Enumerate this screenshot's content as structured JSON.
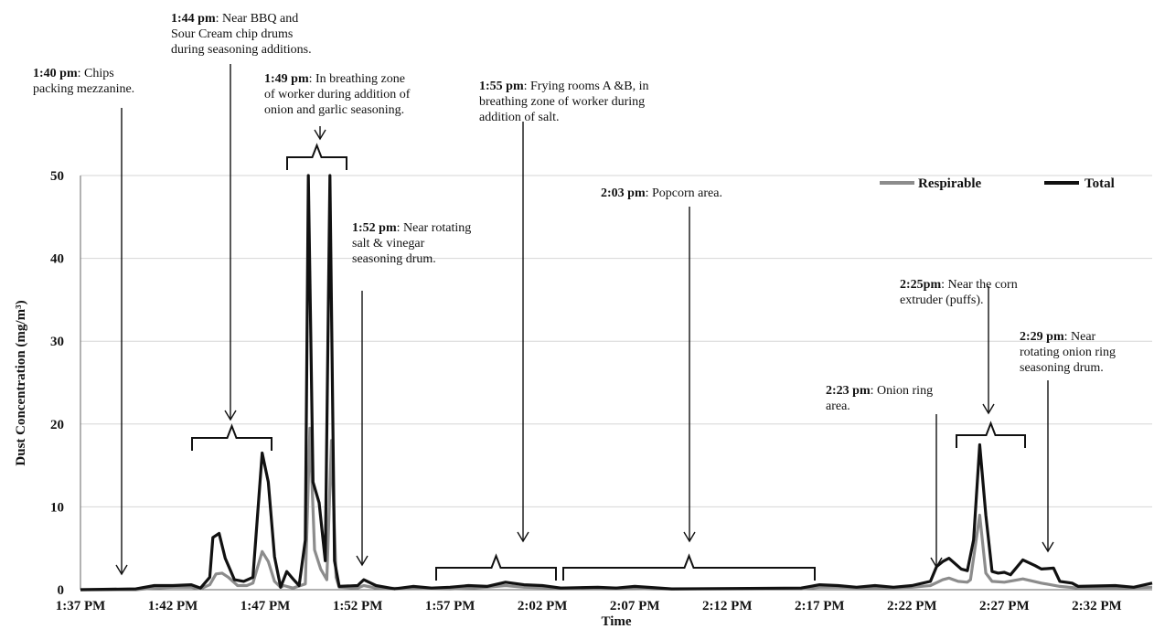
{
  "chart_data": {
    "type": "line",
    "xlabel": "Time",
    "ylabel": "Dust Concentration (mg/m³)",
    "ylim": [
      0,
      50
    ],
    "y_ticks": [
      0,
      10,
      20,
      30,
      40,
      50
    ],
    "xlim": [
      "13:37",
      "14:35"
    ],
    "x_ticks": [
      {
        "t": "13:37",
        "label": "1:37 PM"
      },
      {
        "t": "13:42",
        "label": "1:42 PM"
      },
      {
        "t": "13:47",
        "label": "1:47 PM"
      },
      {
        "t": "13:52",
        "label": "1:52 PM"
      },
      {
        "t": "13:57",
        "label": "1:57 PM"
      },
      {
        "t": "14:02",
        "label": "2:02 PM"
      },
      {
        "t": "14:07",
        "label": "2:07 PM"
      },
      {
        "t": "14:12",
        "label": "2:12 PM"
      },
      {
        "t": "14:17",
        "label": "2:17 PM"
      },
      {
        "t": "14:22",
        "label": "2:22 PM"
      },
      {
        "t": "14:27",
        "label": "2:27 PM"
      },
      {
        "t": "14:32",
        "label": "2:32 PM"
      }
    ],
    "grid": "horizontal",
    "legend_position": "top-right",
    "series": [
      {
        "name": "Respirable",
        "color": "#8c8c8c",
        "points": [
          [
            "13:37",
            0
          ],
          [
            "13:40",
            0
          ],
          [
            "13:41",
            0.2
          ],
          [
            "13:42",
            0.3
          ],
          [
            "13:43",
            0.3
          ],
          [
            "13:43:30",
            0.1
          ],
          [
            "13:44",
            0.6
          ],
          [
            "13:44:20",
            1.9
          ],
          [
            "13:44:40",
            2.0
          ],
          [
            "13:45",
            1.5
          ],
          [
            "13:45:30",
            0.5
          ],
          [
            "13:46",
            0.5
          ],
          [
            "13:46:20",
            0.8
          ],
          [
            "13:46:50",
            4.6
          ],
          [
            "13:47:10",
            3.4
          ],
          [
            "13:47:30",
            1.0
          ],
          [
            "13:47:50",
            0.3
          ],
          [
            "13:48",
            0.5
          ],
          [
            "13:48:30",
            0.2
          ],
          [
            "13:49:10",
            0.7
          ],
          [
            "13:49:25",
            19.5
          ],
          [
            "13:49:40",
            4.8
          ],
          [
            "13:50",
            2.5
          ],
          [
            "13:50:20",
            1.2
          ],
          [
            "13:50:35",
            18.0
          ],
          [
            "13:50:50",
            1.5
          ],
          [
            "13:51",
            0.3
          ],
          [
            "13:52",
            0.2
          ],
          [
            "13:52:20",
            0.5
          ],
          [
            "13:53",
            0.2
          ],
          [
            "13:57",
            0.1
          ],
          [
            "13:59",
            0.3
          ],
          [
            "14:00",
            0.5
          ],
          [
            "14:01",
            0.3
          ],
          [
            "14:03",
            0.2
          ],
          [
            "14:06",
            0.2
          ],
          [
            "14:08",
            0.1
          ],
          [
            "14:16",
            0.1
          ],
          [
            "14:17",
            0.3
          ],
          [
            "14:18",
            0.3
          ],
          [
            "14:20",
            0.2
          ],
          [
            "14:22",
            0.3
          ],
          [
            "14:23",
            0.5
          ],
          [
            "14:23:40",
            1.2
          ],
          [
            "14:24",
            1.4
          ],
          [
            "14:24:30",
            1.0
          ],
          [
            "14:25",
            0.9
          ],
          [
            "14:25:10",
            1.2
          ],
          [
            "14:25:40",
            9.0
          ],
          [
            "14:26",
            2.0
          ],
          [
            "14:26:20",
            1.0
          ],
          [
            "14:27",
            0.9
          ],
          [
            "14:28",
            1.3
          ],
          [
            "14:29",
            0.8
          ],
          [
            "14:30",
            0.4
          ],
          [
            "14:31",
            0.2
          ],
          [
            "14:33",
            0.2
          ],
          [
            "14:35",
            0.3
          ]
        ]
      },
      {
        "name": "Total",
        "color": "#111111",
        "points": [
          [
            "13:37",
            0
          ],
          [
            "13:40",
            0.1
          ],
          [
            "13:41",
            0.5
          ],
          [
            "13:42",
            0.5
          ],
          [
            "13:43",
            0.6
          ],
          [
            "13:43:30",
            0.2
          ],
          [
            "13:44",
            1.5
          ],
          [
            "13:44:10",
            6.3
          ],
          [
            "13:44:30",
            6.8
          ],
          [
            "13:44:50",
            3.8
          ],
          [
            "13:45:20",
            1.2
          ],
          [
            "13:45:50",
            1.0
          ],
          [
            "13:46:20",
            1.5
          ],
          [
            "13:46:50",
            16.5
          ],
          [
            "13:47:10",
            13.0
          ],
          [
            "13:47:30",
            4.0
          ],
          [
            "13:47:50",
            0.3
          ],
          [
            "13:48:10",
            2.2
          ],
          [
            "13:48:30",
            1.3
          ],
          [
            "13:48:50",
            0.5
          ],
          [
            "13:49:10",
            6.0
          ],
          [
            "13:49:20",
            50
          ],
          [
            "13:49:35",
            13.0
          ],
          [
            "13:49:55",
            10.5
          ],
          [
            "13:50:15",
            3.5
          ],
          [
            "13:50:30",
            50
          ],
          [
            "13:50:45",
            3.5
          ],
          [
            "13:51",
            0.4
          ],
          [
            "13:52",
            0.5
          ],
          [
            "13:52:20",
            1.2
          ],
          [
            "13:53",
            0.5
          ],
          [
            "13:54",
            0.1
          ],
          [
            "13:55",
            0.4
          ],
          [
            "13:56",
            0.2
          ],
          [
            "13:57",
            0.3
          ],
          [
            "13:58",
            0.5
          ],
          [
            "13:59",
            0.4
          ],
          [
            "14:00",
            0.9
          ],
          [
            "14:01",
            0.6
          ],
          [
            "14:02",
            0.5
          ],
          [
            "14:03",
            0.2
          ],
          [
            "14:05",
            0.3
          ],
          [
            "14:06",
            0.2
          ],
          [
            "14:07",
            0.4
          ],
          [
            "14:09",
            0.1
          ],
          [
            "14:16",
            0.2
          ],
          [
            "14:17",
            0.6
          ],
          [
            "14:18",
            0.5
          ],
          [
            "14:19",
            0.3
          ],
          [
            "14:20",
            0.5
          ],
          [
            "14:21",
            0.3
          ],
          [
            "14:22",
            0.5
          ],
          [
            "14:23",
            1.0
          ],
          [
            "14:23:20",
            2.8
          ],
          [
            "14:23:40",
            3.4
          ],
          [
            "14:24",
            3.8
          ],
          [
            "14:24:40",
            2.5
          ],
          [
            "14:25",
            2.3
          ],
          [
            "14:25:20",
            6.0
          ],
          [
            "14:25:40",
            17.5
          ],
          [
            "14:26",
            9.0
          ],
          [
            "14:26:20",
            2.2
          ],
          [
            "14:26:40",
            2.0
          ],
          [
            "14:27",
            2.1
          ],
          [
            "14:27:20",
            1.8
          ],
          [
            "14:28",
            3.6
          ],
          [
            "14:28:40",
            2.9
          ],
          [
            "14:29",
            2.5
          ],
          [
            "14:29:40",
            2.6
          ],
          [
            "14:30",
            1.0
          ],
          [
            "14:30:40",
            0.8
          ],
          [
            "14:31",
            0.4
          ],
          [
            "14:33",
            0.5
          ],
          [
            "14:34",
            0.3
          ],
          [
            "14:35",
            0.8
          ]
        ]
      }
    ],
    "annotations": [
      {
        "time": "1:40 pm",
        "text": [
          ": Chips",
          "packing mezzanine."
        ]
      },
      {
        "time": "1:44 pm",
        "text": [
          ": Near BBQ and",
          "Sour Cream chip drums",
          "during seasoning additions."
        ]
      },
      {
        "time": "1:49 pm",
        "text": [
          ": In breathing zone",
          "of worker during addition of",
          "onion and garlic seasoning."
        ]
      },
      {
        "time": "1:52 pm",
        "text": [
          ": Near rotating",
          "salt & vinegar",
          "seasoning drum."
        ]
      },
      {
        "time": "1:55 pm",
        "text": [
          ": Frying rooms A &B, in",
          "breathing zone of worker during",
          "addition of salt."
        ]
      },
      {
        "time": "2:03 pm",
        "text": [
          ": Popcorn area."
        ]
      },
      {
        "time": "2:23 pm",
        "text": [
          ": Onion ring",
          "area."
        ]
      },
      {
        "time": "2:25pm",
        "text": [
          ": Near the corn",
          "extruder (puffs)."
        ]
      },
      {
        "time": "2:29 pm",
        "text": [
          ": Near",
          "rotating onion ring",
          "seasoning drum."
        ]
      }
    ]
  }
}
